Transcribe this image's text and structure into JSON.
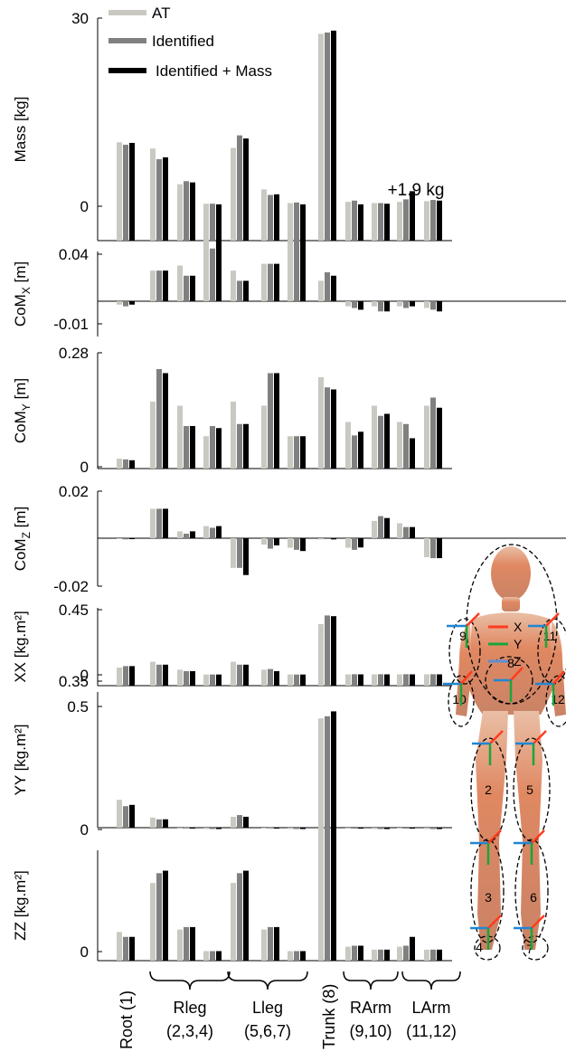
{
  "legend": {
    "entries": [
      {
        "label": "AT",
        "color": "#c9c9c1"
      },
      {
        "label": "Identified",
        "color": "#808080"
      },
      {
        "label": "Identified + Mass",
        "color": "#000000"
      }
    ],
    "placement": "top-left"
  },
  "chart_data": [
    {
      "type": "bar",
      "ylabel": "Mass [kg]",
      "yticks": [
        "30",
        "0"
      ],
      "ylim": [
        -1.5,
        31
      ],
      "zero_line": false,
      "annotation": "+1.9 kg",
      "categories": [
        "1",
        "2",
        "3",
        "4",
        "5",
        "6",
        "7",
        "8",
        "9",
        "10",
        "11",
        "12"
      ],
      "series": [
        {
          "name": "AT",
          "values": [
            10.2,
            9.2,
            3.5,
            0.4,
            9.3,
            2.7,
            0.5,
            27.5,
            0.7,
            0.5,
            0.7,
            0.8
          ]
        },
        {
          "name": "Identified",
          "values": [
            9.8,
            7.5,
            4.0,
            0.4,
            11.3,
            1.8,
            0.6,
            27.7,
            0.9,
            0.5,
            1.1,
            1.0
          ]
        },
        {
          "name": "Identified + Mass",
          "values": [
            10.1,
            7.8,
            3.8,
            0.3,
            10.8,
            1.9,
            0.3,
            28.0,
            0.3,
            0.4,
            2.4,
            0.9
          ]
        }
      ]
    },
    {
      "type": "bar",
      "ylabel": "CoMX [m]",
      "ylabel_main": "CoM",
      "ylabel_sub": "X",
      "ylabel_unit": " [m]",
      "yticks": [
        "0.04",
        "-0.01"
      ],
      "ylim": [
        -0.01,
        0.04
      ],
      "zero_line": true,
      "categories": [
        "1",
        "2",
        "3",
        "4",
        "5",
        "6",
        "7",
        "8",
        "9",
        "10",
        "11",
        "12"
      ],
      "series": [
        {
          "name": "AT",
          "values": [
            -0.002,
            0.018,
            0.021,
            0.036,
            0.018,
            0.022,
            0.036,
            0.012,
            -0.003,
            -0.003,
            -0.003,
            -0.004
          ]
        },
        {
          "name": "Identified",
          "values": [
            -0.003,
            0.018,
            0.015,
            0.031,
            0.012,
            0.022,
            0.037,
            0.017,
            -0.004,
            -0.006,
            -0.004,
            -0.005
          ]
        },
        {
          "name": "Identified + Mass",
          "values": [
            -0.002,
            0.018,
            0.015,
            0.036,
            0.012,
            0.022,
            0.038,
            0.015,
            -0.005,
            -0.006,
            -0.003,
            -0.006
          ]
        }
      ]
    },
    {
      "type": "bar",
      "ylabel": "CoMY [m]",
      "ylabel_main": "CoM",
      "ylabel_sub": "Y",
      "ylabel_unit": " [m]",
      "yticks": [
        "0.28",
        "0"
      ],
      "ylim": [
        0,
        0.28
      ],
      "zero_line": false,
      "categories": [
        "1",
        "2",
        "3",
        "4",
        "5",
        "6",
        "7",
        "8",
        "9",
        "10",
        "11",
        "12"
      ],
      "series": [
        {
          "name": "AT",
          "values": [
            0.02,
            0.16,
            0.15,
            0.075,
            0.16,
            0.15,
            0.075,
            0.22,
            0.11,
            0.15,
            0.11,
            0.15
          ]
        },
        {
          "name": "Identified",
          "values": [
            0.018,
            0.24,
            0.1,
            0.1,
            0.105,
            0.23,
            0.075,
            0.195,
            0.077,
            0.125,
            0.105,
            0.17
          ]
        },
        {
          "name": "Identified + Mass",
          "values": [
            0.016,
            0.23,
            0.1,
            0.095,
            0.105,
            0.23,
            0.075,
            0.19,
            0.086,
            0.13,
            0.07,
            0.145
          ]
        }
      ]
    },
    {
      "type": "bar",
      "ylabel": "CoMZ [m]",
      "ylabel_main": "CoM",
      "ylabel_sub": "Z",
      "ylabel_unit": " [m]",
      "yticks": [
        "0.02",
        "-0.02"
      ],
      "ylim": [
        -0.02,
        0.02
      ],
      "zero_line": true,
      "categories": [
        "1",
        "2",
        "3",
        "4",
        "5",
        "6",
        "7",
        "8",
        "9",
        "10",
        "11",
        "12"
      ],
      "series": [
        {
          "name": "AT",
          "values": [
            -0.0003,
            0.0124,
            0.0029,
            0.0051,
            -0.0125,
            -0.0027,
            -0.004,
            -0.0005,
            -0.004,
            0.0073,
            0.0063,
            -0.008
          ]
        },
        {
          "name": "Identified",
          "values": [
            -0.0005,
            0.0124,
            0.0019,
            0.0044,
            -0.0125,
            -0.0044,
            -0.0049,
            -0.0003,
            -0.0049,
            0.0093,
            0.0047,
            -0.0084
          ]
        },
        {
          "name": "Identified + Mass",
          "values": [
            -0.0004,
            0.0124,
            0.0029,
            0.0051,
            -0.0155,
            -0.003,
            -0.0054,
            -0.0005,
            -0.0039,
            0.0085,
            0.0047,
            -0.0084
          ]
        }
      ]
    },
    {
      "type": "bar",
      "ylabel": "XX [kg.m²]",
      "yticks": [
        "0.45",
        "0"
      ],
      "ylim": [
        0,
        0.45
      ],
      "zero_line": false,
      "categories": [
        "1",
        "2",
        "3",
        "4",
        "5",
        "6",
        "7",
        "8",
        "9",
        "10",
        "11",
        "12"
      ],
      "series": [
        {
          "name": "AT",
          "values": [
            0.05,
            0.09,
            0.035,
            0.002,
            0.09,
            0.035,
            0.002,
            0.35,
            0.003,
            0.003,
            0.003,
            0.003
          ]
        },
        {
          "name": "Identified",
          "values": [
            0.06,
            0.07,
            0.025,
            0.002,
            0.07,
            0.04,
            0.002,
            0.41,
            0.004,
            0.004,
            0.004,
            0.004
          ]
        },
        {
          "name": "Identified + Mass",
          "values": [
            0.06,
            0.07,
            0.025,
            0.002,
            0.07,
            0.025,
            0.002,
            0.405,
            0.003,
            0.003,
            0.003,
            0.003
          ]
        }
      ]
    },
    {
      "type": "bar",
      "ylabel": "YY [kg.m²]",
      "yticks": [
        "0.35",
        "0"
      ],
      "ylim": [
        0,
        0.35
      ],
      "zero_line": false,
      "categories": [
        "1",
        "2",
        "3",
        "4",
        "5",
        "6",
        "7",
        "8",
        "9",
        "10",
        "11",
        "12"
      ],
      "series": [
        {
          "name": "AT",
          "values": [
            0.07,
            0.028,
            0.004,
            0.001,
            0.03,
            0.004,
            0.001,
            0.262,
            0.002,
            0.001,
            0.002,
            0.001
          ]
        },
        {
          "name": "Identified",
          "values": [
            0.055,
            0.024,
            0.006,
            0.001,
            0.034,
            0.006,
            0.001,
            0.208,
            0.003,
            0.001,
            0.003,
            0.001
          ]
        },
        {
          "name": "Identified + Mass",
          "values": [
            0.058,
            0.024,
            0.004,
            0.001,
            0.03,
            0.004,
            0.001,
            0.214,
            0.002,
            0.001,
            0.002,
            0.001
          ]
        }
      ]
    },
    {
      "type": "bar",
      "ylabel": "ZZ [kg.m²]",
      "yticks": [
        "0.5",
        "0"
      ],
      "ylim": [
        0,
        0.5
      ],
      "zero_line": false,
      "categories": [
        "1",
        "2",
        "3",
        "4",
        "5",
        "6",
        "7",
        "8",
        "9",
        "10",
        "11",
        "12"
      ],
      "series": [
        {
          "name": "AT",
          "values": [
            0.04,
            0.14,
            0.045,
            0.001,
            0.14,
            0.045,
            0.001,
            0.41,
            0.01,
            0.004,
            0.01,
            0.004
          ]
        },
        {
          "name": "Identified",
          "values": [
            0.03,
            0.16,
            0.05,
            0.001,
            0.16,
            0.05,
            0.001,
            0.48,
            0.012,
            0.004,
            0.012,
            0.004
          ]
        },
        {
          "name": "Identified + Mass",
          "values": [
            0.03,
            0.165,
            0.05,
            0.001,
            0.165,
            0.05,
            0.001,
            0.49,
            0.012,
            0.004,
            0.03,
            0.004
          ]
        }
      ]
    }
  ],
  "x_groups": [
    {
      "label": "Root (1)",
      "vertical": true
    },
    {
      "label": "Rleg",
      "sub": "(2,3,4)"
    },
    {
      "label": "Lleg",
      "sub": "(5,6,7)"
    },
    {
      "label": "Trunk (8)",
      "vertical": true
    },
    {
      "label": "RArm",
      "sub": "(9,10)"
    },
    {
      "label": "LArm",
      "sub": "(11,12)"
    }
  ],
  "body_figure": {
    "axes_legend": [
      {
        "label": "X",
        "color": "#ff3b1f"
      },
      {
        "label": "Y",
        "color": "#1aa53a"
      },
      {
        "label": "Z",
        "color": "#5b8fd6"
      }
    ],
    "segment_labels": [
      "2",
      "3",
      "4",
      "5",
      "6",
      "7",
      "8",
      "9",
      "10",
      "11",
      "12"
    ]
  }
}
